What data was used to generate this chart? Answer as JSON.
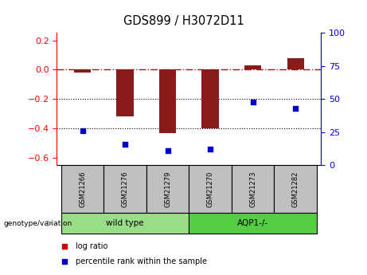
{
  "title": "GDS899 / H3072D11",
  "samples": [
    "GSM21266",
    "GSM21276",
    "GSM21279",
    "GSM21270",
    "GSM21273",
    "GSM21282"
  ],
  "log_ratio": [
    -0.02,
    -0.32,
    -0.43,
    -0.4,
    0.03,
    0.08
  ],
  "percentile_rank": [
    26,
    16,
    11,
    12,
    48,
    43
  ],
  "groups": [
    {
      "label": "wild type",
      "samples": [
        0,
        1,
        2
      ],
      "color": "#99dd88"
    },
    {
      "label": "AQP1-/-",
      "samples": [
        3,
        4,
        5
      ],
      "color": "#55cc44"
    }
  ],
  "bar_color": "#8b1a1a",
  "dot_color": "#0000cc",
  "ylim_left": [
    -0.65,
    0.25
  ],
  "ylim_right": [
    0,
    100
  ],
  "yticks_left": [
    0.2,
    0.0,
    -0.2,
    -0.4,
    -0.6
  ],
  "yticks_right": [
    100,
    75,
    50,
    25,
    0
  ],
  "hline_zero_color": "#cc0000",
  "hline_zero_style": "-.",
  "hline_dotted_color": "black",
  "hline_dotted_vals": [
    -0.2,
    -0.4
  ],
  "group_box_color": "#c0c0c0",
  "legend_entries": [
    "log ratio",
    "percentile rank within the sample"
  ],
  "legend_colors": [
    "#cc0000",
    "#0000cc"
  ],
  "genotype_label": "genotype/variation",
  "arrow_color": "#999999",
  "bar_width": 0.4
}
